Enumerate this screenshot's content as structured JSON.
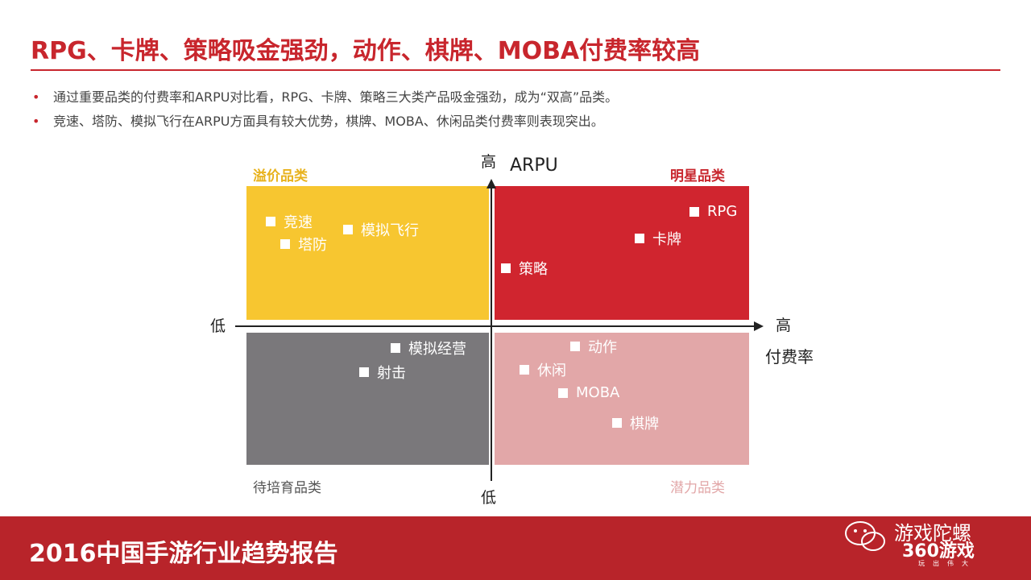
{
  "title": "RPG、卡牌、策略吸金强劲，动作、棋牌、MOBA付费率较高",
  "bullets": [
    "通过重要品类的付费率和ARPU对比看，RPG、卡牌、策略三大类产品吸金强劲，成为“双高”品类。",
    "竞速、塔防、模拟飞行在ARPU方面具有较大优势，棋牌、MOBA、休闲品类付费率则表现突出。"
  ],
  "axes": {
    "y_high": "高",
    "y_label": "ARPU",
    "y_low": "低",
    "x_low": "低",
    "x_high": "高",
    "x_label": "付费率"
  },
  "quadrants": {
    "top_left": {
      "label": "溢价品类",
      "color": "#f7c630",
      "items": [
        "竞速",
        "塔防",
        "模拟飞行"
      ]
    },
    "top_right": {
      "label": "明星品类",
      "color": "#d0252f",
      "items": [
        "RPG",
        "卡牌",
        "策略"
      ]
    },
    "bottom_left": {
      "label": "待培育品类",
      "color": "#7a787b",
      "items": [
        "模拟经营",
        "射击"
      ]
    },
    "bottom_right": {
      "label": "潜力品类",
      "color": "#e2a7a8",
      "items": [
        "动作",
        "休闲",
        "MOBA",
        "棋牌"
      ]
    }
  },
  "footer": {
    "title": "2016中国手游行业趋势报告",
    "brand": "游戏陀螺",
    "logo": "360游戏",
    "logo_sub": "玩出伟大"
  }
}
